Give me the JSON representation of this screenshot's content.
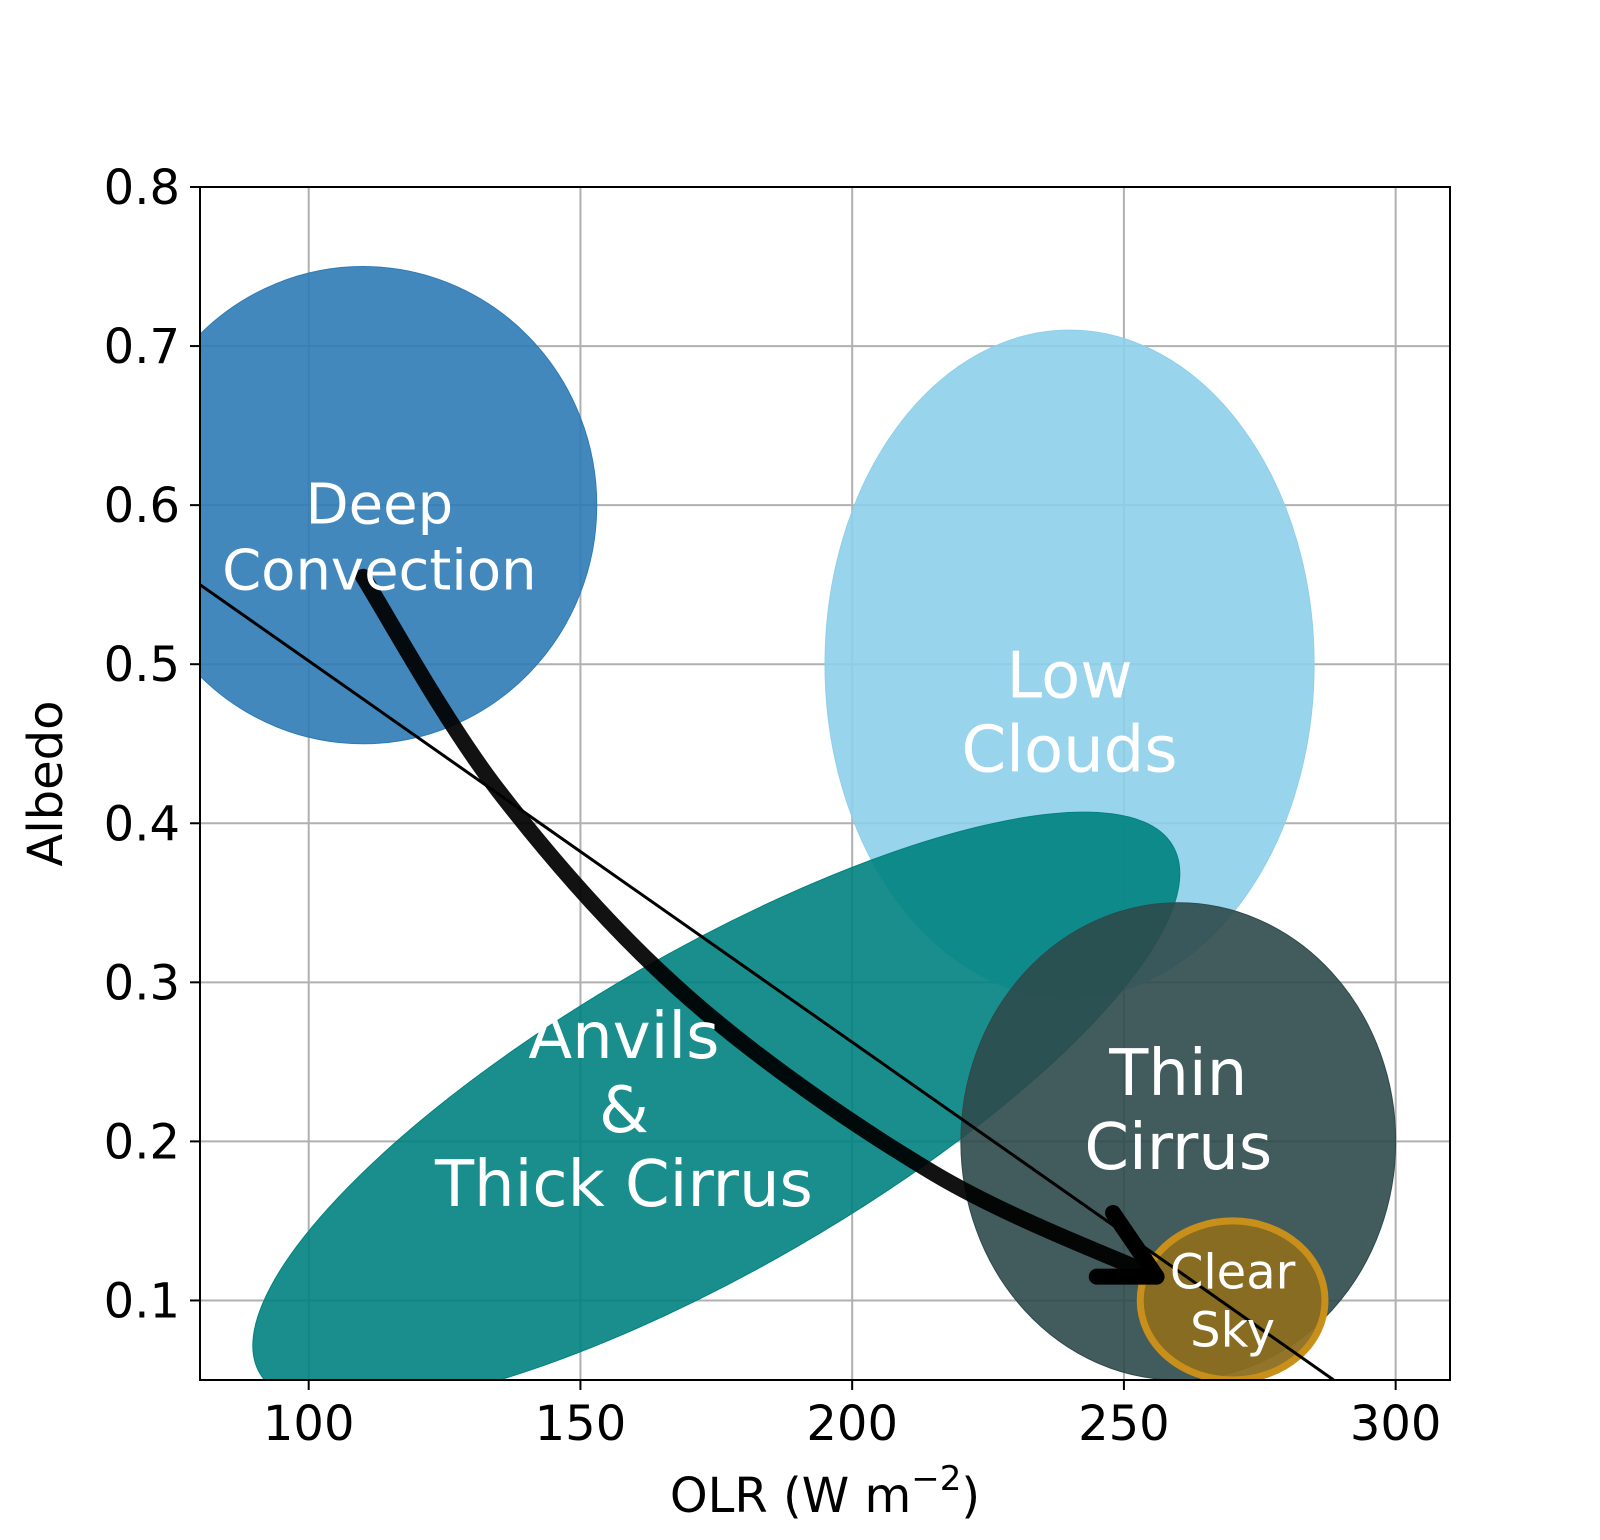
{
  "chart_data": {
    "type": "scatter",
    "title": "",
    "xlabel": "OLR (W m",
    "xlabel_sup": "−2",
    "xlabel_end": ")",
    "ylabel": "Albedo",
    "xlim": [
      80,
      310
    ],
    "ylim": [
      0.05,
      0.8
    ],
    "xticks": [
      100,
      150,
      200,
      250,
      300
    ],
    "xtick_labels": [
      "100",
      "150",
      "200",
      "250",
      "300"
    ],
    "yticks": [
      0.1,
      0.2,
      0.3,
      0.4,
      0.5,
      0.6,
      0.7,
      0.8
    ],
    "ytick_labels": [
      "0.1",
      "0.2",
      "0.3",
      "0.4",
      "0.5",
      "0.6",
      "0.7",
      "0.8"
    ],
    "grid": true,
    "legend": "none",
    "regions": [
      {
        "id": "deep-convection",
        "label_lines": [
          "Deep",
          "Convection"
        ],
        "center": [
          110,
          0.6
        ],
        "half_width": 43,
        "half_height": 0.15,
        "angle_deg": 0,
        "color": "#2d7bb6",
        "edge": "#2d7bb6",
        "label_pos": [
          113,
          0.58
        ]
      },
      {
        "id": "low-clouds",
        "label_lines": [
          "Low",
          "Clouds"
        ],
        "center": [
          240,
          0.5
        ],
        "half_width": 45,
        "half_height": 0.21,
        "angle_deg": 0,
        "color": "#8ecfeb",
        "edge": "#8ecfeb",
        "label_pos": [
          240,
          0.47
        ]
      },
      {
        "id": "anvils-thick-cirrus",
        "label_lines": [
          "Anvils",
          "&",
          "Thick Cirrus"
        ],
        "center": [
          175,
          0.22
        ],
        "half_width": 97,
        "half_height": 0.1,
        "angle_deg": -30,
        "color": "#00827f",
        "edge": "#00827f",
        "label_pos": [
          158,
          0.22
        ]
      },
      {
        "id": "thin-cirrus",
        "label_lines": [
          "Thin",
          "Cirrus"
        ],
        "center": [
          260,
          0.2
        ],
        "half_width": 40,
        "half_height": 0.15,
        "angle_deg": 0,
        "color": "#2e4a4b",
        "edge": "#2e4a4b",
        "label_pos": [
          260,
          0.22
        ]
      },
      {
        "id": "clear-sky",
        "label_lines": [
          "Clear",
          "Sky"
        ],
        "center": [
          270,
          0.1
        ],
        "half_width": 17,
        "half_height": 0.05,
        "angle_deg": 0,
        "color": "#8c6d1f",
        "edge": "#c8901a",
        "label_pos": [
          270,
          0.1
        ]
      }
    ],
    "reference_line": {
      "x": [
        80,
        288.6
      ],
      "y": [
        0.55,
        0.05
      ],
      "color": "#000000"
    },
    "transition_arrow": {
      "color": "#000000",
      "path": [
        [
          110,
          0.555
        ],
        [
          135,
          0.42
        ],
        [
          170,
          0.29
        ],
        [
          215,
          0.18
        ],
        [
          256,
          0.115
        ]
      ],
      "head_tip": [
        256,
        0.115
      ],
      "head_arms": [
        [
          248,
          0.155
        ],
        [
          245,
          0.115
        ]
      ]
    }
  }
}
